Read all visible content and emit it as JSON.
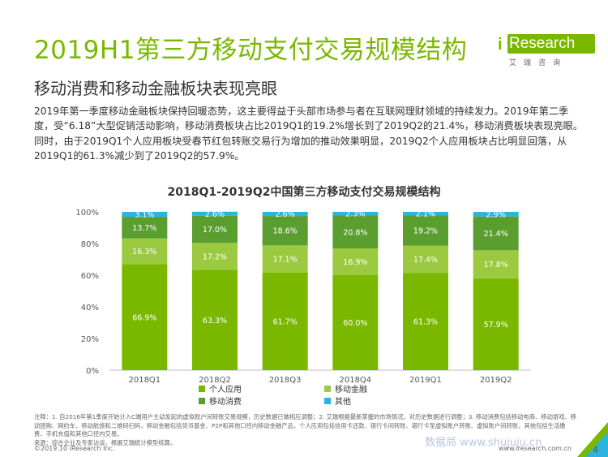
{
  "header": {
    "title": "2019H1第三方移动支付交易规模结构",
    "subtitle": "移动消费和移动金融板块表现亮眼"
  },
  "logo": {
    "brand": "Research",
    "brand_i": "i",
    "sub": "艾瑞咨询"
  },
  "body_text": "2019年第一季度移动金融板块保持回暖态势，这主要得益于头部市场参与者在互联网理财领域的持续发力。2019年第二季度，受“6.18”大型促销活动影响，移动消费板块占比2019Q1的19.2%增长到了2019Q2的21.4%，移动消费板块表现亮眼。同时，由于2019Q1个人应用板块受春节红包转账交易行为增加的推动效果明显，2019Q2个人应用板块占比明显回落，从2019Q1的61.3%减少到了2019Q2的57.9%。",
  "chart_data": {
    "type": "bar",
    "stacked": true,
    "title": "2018Q1-2019Q2中国第三方移动支付交易规模结构",
    "categories": [
      "2018Q1",
      "2018Q2",
      "2018Q3",
      "2018Q4",
      "2019Q1",
      "2019Q2"
    ],
    "series": [
      {
        "name": "个人应用",
        "color": "#7ab800",
        "values": [
          66.9,
          63.3,
          61.7,
          60.0,
          61.3,
          57.9
        ],
        "labels": [
          "66.9%",
          "63.3%",
          "61.7%",
          "60.0%",
          "61.3%",
          "57.9%"
        ]
      },
      {
        "name": "移动金融",
        "color": "#9bc93f",
        "values": [
          16.3,
          17.2,
          17.1,
          16.9,
          17.4,
          17.8
        ],
        "labels": [
          "16.3%",
          "17.2%",
          "17.1%",
          "16.9%",
          "17.4%",
          "17.8%"
        ]
      },
      {
        "name": "移动消费",
        "color": "#5a9e2f",
        "values": [
          13.7,
          17.0,
          18.6,
          20.8,
          19.2,
          21.4
        ],
        "labels": [
          "13.7%",
          "17.0%",
          "18.6%",
          "20.8%",
          "19.2%",
          "21.4%"
        ]
      },
      {
        "name": "其他",
        "color": "#29b5de",
        "values": [
          3.1,
          2.6,
          2.6,
          2.3,
          2.1,
          2.9
        ],
        "labels": [
          "3.1%",
          "2.6%",
          "2.6%",
          "2.3%",
          "2.1%",
          "2.9%"
        ]
      }
    ],
    "yticks": [
      "0%",
      "20%",
      "40%",
      "60%",
      "80%",
      "100%"
    ],
    "ylim": [
      0,
      100
    ],
    "legend_position": "bottom"
  },
  "notes": "注释：1. 自2016年第1季度开始计入C端用户主动发起的虚拟账户间转账交易规模，历史数据已做相应调整；2. 艾瑞根据最新掌握的市场情况，对历史数据进行调整；3. 移动消费包括移动电商、移动游戏、移动团购、网约车、移动航旅和二维码扫码，移动金融包括货币基金、P2P和其他口径内移动金融产品，个人应用包括信用卡还款、银行卡间转账、银行卡至虚拟账户转账、虚拟账户间转账，其他包括生活缴费、手机充值和其他口径内交易。",
  "source": "来源：综合企业及专家访谈，根据艾瑞统计模型核算。",
  "footer": {
    "copyright": "©2019.10 iResearch Inc.",
    "url": "www.iresearch.com.cn",
    "watermark": "数据局 www.shujuju.cn",
    "page": "4"
  }
}
